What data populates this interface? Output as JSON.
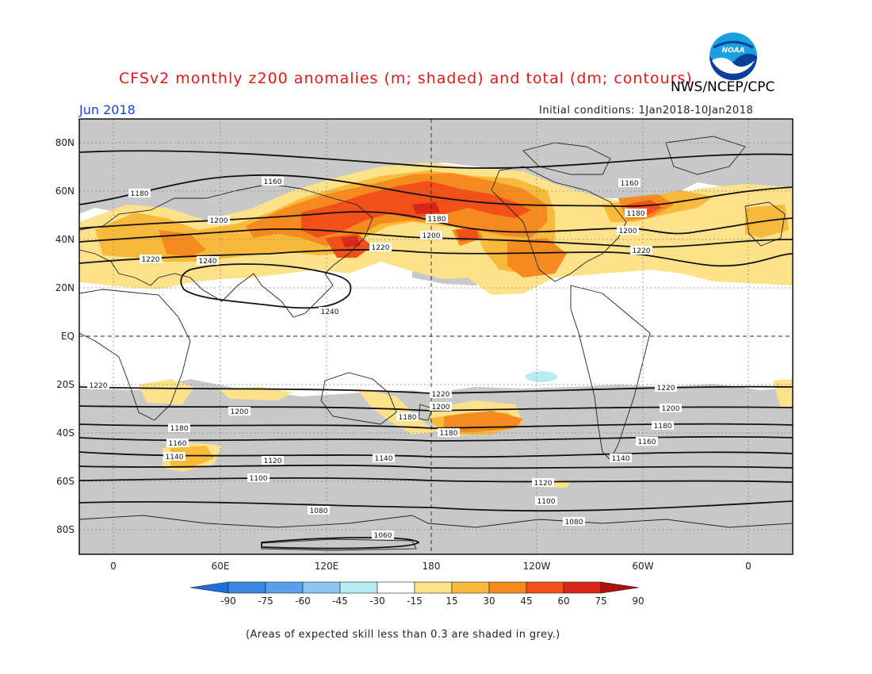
{
  "header": {
    "title": "CFSv2 monthly z200 anomalies (m; shaded) and total (dm; contours)",
    "agency": "NWS/NCEP/CPC",
    "month": "Jun 2018",
    "initial_conditions": "Initial conditions: 1Jan2018-10Jan2018",
    "logo_text": "NOAA"
  },
  "map": {
    "lat_labels": [
      "80N",
      "60N",
      "40N",
      "20N",
      "EQ",
      "20S",
      "40S",
      "60S",
      "80S"
    ],
    "lon_labels": [
      "0",
      "60E",
      "120E",
      "180",
      "120W",
      "60W",
      "0"
    ],
    "contour_labels": [
      "1160",
      "1180",
      "1200",
      "1220",
      "1240",
      "1160",
      "1180",
      "1200",
      "1220",
      "1180",
      "1200",
      "1220",
      "1220",
      "1200",
      "1180",
      "1160",
      "1140",
      "1120",
      "1100",
      "1080",
      "1060",
      "1220",
      "1200",
      "1180",
      "1180",
      "1140",
      "1120",
      "1100",
      "1080",
      "1220",
      "1200",
      "1180",
      "1160",
      "1140",
      "1240"
    ]
  },
  "colorbar": {
    "labels": [
      "-90",
      "-75",
      "-60",
      "-45",
      "-30",
      "-15",
      "15",
      "30",
      "45",
      "60",
      "75",
      "90"
    ],
    "colors": [
      "#1e6fdc",
      "#3a86e0",
      "#5aa0ea",
      "#8ec4f2",
      "#b6ecf2",
      "#ffffff",
      "#fde28a",
      "#f9b93a",
      "#f58a1e",
      "#f25018",
      "#d8261a",
      "#b0100e"
    ]
  },
  "footnote": "(Areas of expected skill less than 0.3 are shaded in grey.)"
}
